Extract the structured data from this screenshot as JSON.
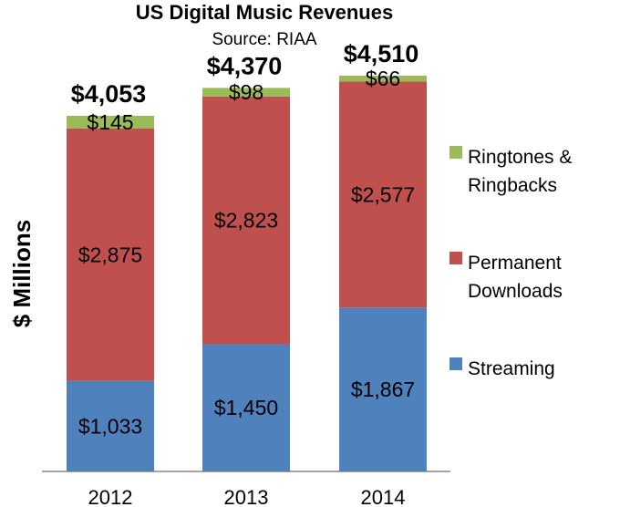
{
  "chart_data": {
    "type": "bar",
    "stacked": true,
    "title": "US Digital Music Revenues",
    "subtitle": "Source: RIAA",
    "xlabel": "",
    "ylabel": "$ Millions",
    "ylim": [
      0,
      4600
    ],
    "grid": false,
    "legend_position": "right",
    "categories": [
      "2012",
      "2013",
      "2014"
    ],
    "series": [
      {
        "name": "Streaming",
        "color": "#4f81bd",
        "values": [
          1033,
          1450,
          1867
        ],
        "labels": [
          "$1,033",
          "$1,450",
          "$1,867"
        ]
      },
      {
        "name": "Permanent Downloads",
        "color": "#c0504d",
        "values": [
          2875,
          2823,
          2577
        ],
        "labels": [
          "$2,875",
          "$2,823",
          "$2,577"
        ]
      },
      {
        "name": "Ringtones & Ringbacks",
        "color": "#9bbb59",
        "values": [
          145,
          98,
          66
        ],
        "labels": [
          "$145",
          "$98",
          "$66"
        ]
      }
    ],
    "totals": [
      4053,
      4370,
      4510
    ],
    "total_labels": [
      "$4,053",
      "$4,370",
      "$4,510"
    ],
    "legend": [
      {
        "series": 2,
        "lines": [
          "Ringtones &",
          "Ringbacks"
        ]
      },
      {
        "series": 1,
        "lines": [
          "Permanent",
          "Downloads"
        ]
      },
      {
        "series": 0,
        "lines": [
          "Streaming"
        ]
      }
    ]
  }
}
